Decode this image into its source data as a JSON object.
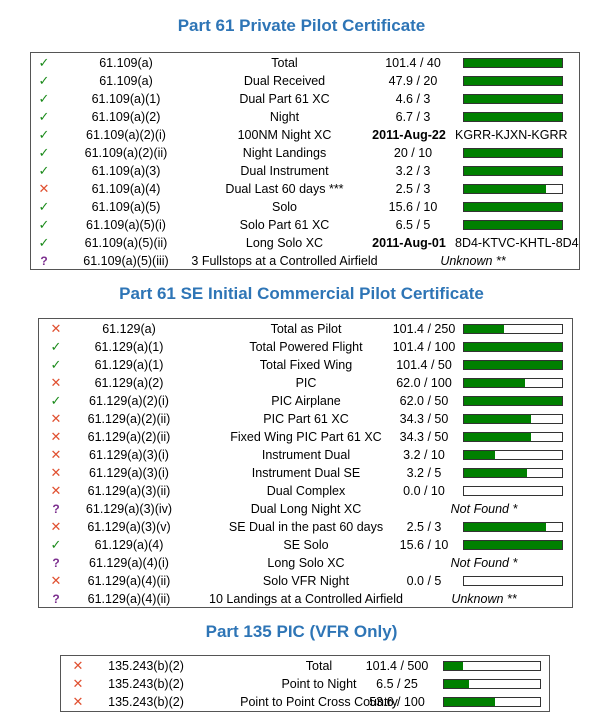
{
  "colors": {
    "title": "#2e75b6",
    "bar_fill": "#008000",
    "check": "#1a8a1a",
    "cross": "#e05030",
    "question": "#7b2e8e"
  },
  "symbols": {
    "check": "✓",
    "cross": "✕",
    "question": "?"
  },
  "sections": [
    {
      "title": "Part 61 Private Pilot Certificate",
      "rows": [
        {
          "status": "check",
          "reg": "61.109(a)",
          "desc": "Total",
          "value": "101.4 / 40",
          "progress": 1.0
        },
        {
          "status": "check",
          "reg": "61.109(a)",
          "desc": "Dual Received",
          "value": "47.9 / 20",
          "progress": 1.0
        },
        {
          "status": "check",
          "reg": "61.109(a)(1)",
          "desc": "Dual Part 61 XC",
          "value": "4.6 / 3",
          "progress": 1.0
        },
        {
          "status": "check",
          "reg": "61.109(a)(2)",
          "desc": "Night",
          "value": "6.7 / 3",
          "progress": 1.0
        },
        {
          "status": "check",
          "reg": "61.109(a)(2)(i)",
          "desc": "100NM Night XC",
          "date": "2011-Aug-22",
          "route": "KGRR-KJXN-KGRR"
        },
        {
          "status": "check",
          "reg": "61.109(a)(2)(ii)",
          "desc": "Night Landings",
          "value": "20 / 10",
          "progress": 1.0
        },
        {
          "status": "check",
          "reg": "61.109(a)(3)",
          "desc": "Dual Instrument",
          "value": "3.2 / 3",
          "progress": 1.0
        },
        {
          "status": "cross",
          "reg": "61.109(a)(4)",
          "desc": "Dual Last 60 days ***",
          "value": "2.5 / 3",
          "progress": 0.833
        },
        {
          "status": "check",
          "reg": "61.109(a)(5)",
          "desc": "Solo",
          "value": "15.6 / 10",
          "progress": 1.0
        },
        {
          "status": "check",
          "reg": "61.109(a)(5)(i)",
          "desc": "Solo Part 61 XC",
          "value": "6.5 / 5",
          "progress": 1.0
        },
        {
          "status": "check",
          "reg": "61.109(a)(5)(ii)",
          "desc": "Long Solo XC",
          "date": "2011-Aug-01",
          "route": "8D4-KTVC-KHTL-8D4"
        },
        {
          "status": "question",
          "reg": "61.109(a)(5)(iii)",
          "desc": "3 Fullstops at a Controlled Airfield",
          "note": "Unknown **"
        }
      ]
    },
    {
      "title": "Part 61 SE Initial Commercial Pilot Certificate",
      "rows": [
        {
          "status": "cross",
          "reg": "61.129(a)",
          "desc": "Total as Pilot",
          "value": "101.4 / 250",
          "progress": 0.406
        },
        {
          "status": "check",
          "reg": "61.129(a)(1)",
          "desc": "Total Powered Flight",
          "value": "101.4 / 100",
          "progress": 1.0
        },
        {
          "status": "check",
          "reg": "61.129(a)(1)",
          "desc": "Total Fixed Wing",
          "value": "101.4 / 50",
          "progress": 1.0
        },
        {
          "status": "cross",
          "reg": "61.129(a)(2)",
          "desc": "PIC",
          "value": "62.0 / 100",
          "progress": 0.62
        },
        {
          "status": "check",
          "reg": "61.129(a)(2)(i)",
          "desc": "PIC Airplane",
          "value": "62.0 / 50",
          "progress": 1.0
        },
        {
          "status": "cross",
          "reg": "61.129(a)(2)(ii)",
          "desc": "PIC Part 61 XC",
          "value": "34.3 / 50",
          "progress": 0.686
        },
        {
          "status": "cross",
          "reg": "61.129(a)(2)(ii)",
          "desc": "Fixed Wing PIC Part 61 XC",
          "value": "34.3 / 50",
          "progress": 0.686
        },
        {
          "status": "cross",
          "reg": "61.129(a)(3)(i)",
          "desc": "Instrument Dual",
          "value": "3.2 / 10",
          "progress": 0.32
        },
        {
          "status": "cross",
          "reg": "61.129(a)(3)(i)",
          "desc": "Instrument Dual SE",
          "value": "3.2 / 5",
          "progress": 0.64
        },
        {
          "status": "cross",
          "reg": "61.129(a)(3)(ii)",
          "desc": "Dual Complex",
          "value": "0.0 / 10",
          "progress": 0.0
        },
        {
          "status": "question",
          "reg": "61.129(a)(3)(iv)",
          "desc": "Dual Long Night XC",
          "note": "Not Found *"
        },
        {
          "status": "cross",
          "reg": "61.129(a)(3)(v)",
          "desc": "SE Dual in the past 60 days",
          "value": "2.5 / 3",
          "progress": 0.833
        },
        {
          "status": "check",
          "reg": "61.129(a)(4)",
          "desc": "SE Solo",
          "value": "15.6 / 10",
          "progress": 1.0
        },
        {
          "status": "question",
          "reg": "61.129(a)(4)(i)",
          "desc": "Long Solo XC",
          "note": "Not Found *"
        },
        {
          "status": "cross",
          "reg": "61.129(a)(4)(ii)",
          "desc": "Solo VFR Night",
          "value": "0.0 / 5",
          "progress": 0.0
        },
        {
          "status": "question",
          "reg": "61.129(a)(4)(ii)",
          "desc": "10 Landings at a Controlled Airfield",
          "note": "Unknown **"
        }
      ]
    },
    {
      "title": "Part 135 PIC (VFR Only)",
      "rows": [
        {
          "status": "cross",
          "reg": "135.243(b)(2)",
          "desc": "Total",
          "value": "101.4 / 500",
          "progress": 0.203
        },
        {
          "status": "cross",
          "reg": "135.243(b)(2)",
          "desc": "Point to Night",
          "value": "6.5 / 25",
          "progress": 0.26
        },
        {
          "status": "cross",
          "reg": "135.243(b)(2)",
          "desc": "Point to Point Cross Country",
          "value": "53.6 / 100",
          "progress": 0.536
        }
      ]
    }
  ]
}
